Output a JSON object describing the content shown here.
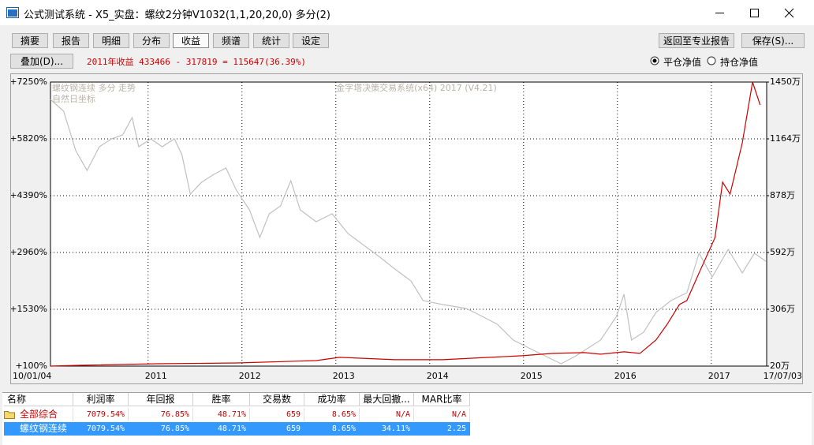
{
  "window": {
    "title": "公式测试系统 - X5_实盘：螺纹2分钟V1032(1,1,20,20,0) 多分(2)"
  },
  "toolbar": {
    "tabs": [
      "摘要",
      "报告",
      "明细",
      "分布",
      "收益",
      "频谱",
      "统计",
      "设定"
    ],
    "overlay_button": "叠加(D)...",
    "profit_text": "2011年收益 433466 - 317819 = 115647(36.39%)",
    "right_buttons": [
      "返回至专业报告",
      "保存(S)..."
    ],
    "radio": [
      "平仓净值",
      "持仓净值"
    ]
  },
  "chart_data": {
    "type": "line",
    "annotations": [
      "螺纹钢连续 多分 走势",
      "自然日坐标",
      "金字塔决策交易系统(x64) 2017 (V4.21)"
    ],
    "xlim": [
      2009.96,
      2017.59
    ],
    "xticks": [
      {
        "value": 2009.96,
        "label": "10/01/04"
      },
      2011,
      2012,
      2013,
      2014,
      2015,
      2016,
      2017,
      {
        "value": 2017.59,
        "label": "17/07/03"
      }
    ],
    "ylim": [
      100,
      7250
    ],
    "yticks": [
      {
        "value": 100,
        "label": "+100%"
      },
      {
        "value": 1530,
        "label": "+1530%"
      },
      {
        "value": 2960,
        "label": "+2960%"
      },
      {
        "value": 4390,
        "label": "+4390%"
      },
      {
        "value": 5820,
        "label": "+5820%"
      },
      {
        "value": 7250,
        "label": "+7250%"
      }
    ],
    "y2lim": [
      20,
      1450
    ],
    "y2ticks": [
      {
        "value": 20,
        "label": "20万"
      },
      {
        "value": 306,
        "label": "306万"
      },
      {
        "value": 592,
        "label": "592万"
      },
      {
        "value": 878,
        "label": "878万"
      },
      {
        "value": 1164,
        "label": "1164万"
      },
      {
        "value": 1450,
        "label": "1450万"
      }
    ],
    "grid": true,
    "series": [
      {
        "color": "#c0c0c0",
        "x": [
          2009.96,
          2010.1,
          2010.23,
          2010.35,
          2010.48,
          2010.61,
          2010.73,
          2010.83,
          2010.9,
          2011.03,
          2011.15,
          2011.28,
          2011.36,
          2011.45,
          2011.57,
          2011.7,
          2011.83,
          2011.94,
          2012.08,
          2012.19,
          2012.29,
          2012.41,
          2012.52,
          2012.62,
          2012.79,
          2012.96,
          2013.13,
          2013.3,
          2013.47,
          2013.63,
          2013.8,
          2013.93,
          2014.14,
          2014.39,
          2014.56,
          2014.72,
          2014.89,
          2015.14,
          2015.4,
          2015.56,
          2015.82,
          2015.99,
          2016.07,
          2016.15,
          2016.28,
          2016.41,
          2016.57,
          2016.74,
          2016.87,
          2017.01,
          2017.18,
          2017.33,
          2017.46,
          2017.58
        ],
        "values": [
          6813,
          6515,
          5522,
          5026,
          5621,
          5820,
          5919,
          6356,
          5621,
          5820,
          5621,
          5820,
          5423,
          4430,
          4728,
          4926,
          5085,
          4529,
          4033,
          3337,
          3933,
          4132,
          4767,
          4033,
          3735,
          3933,
          3437,
          3139,
          2841,
          2543,
          2245,
          1748,
          1649,
          1550,
          1351,
          1153,
          755,
          458,
          160,
          358,
          755,
          1351,
          1907,
          755,
          954,
          1451,
          1748,
          1947,
          2940,
          2344,
          3039,
          2443,
          2940,
          2741
        ]
      },
      {
        "color": "#cc0000",
        "axis": "y2",
        "x": [
          2009.96,
          2010.27,
          2011.11,
          2011.95,
          2012.79,
          2013.04,
          2013.63,
          2014.14,
          2014.47,
          2014.98,
          2015.31,
          2015.65,
          2015.82,
          2016.07,
          2016.24,
          2016.41,
          2016.53,
          2016.66,
          2016.74,
          2016.87,
          2017.04,
          2017.12,
          2017.2,
          2017.33,
          2017.44,
          2017.52
        ],
        "values": [
          20,
          24,
          32,
          36,
          48,
          64,
          52,
          52,
          60,
          72,
          84,
          88,
          80,
          92,
          84,
          151,
          231,
          330,
          350,
          489,
          667,
          946,
          886,
          1144,
          1450,
          1335
        ]
      }
    ]
  },
  "table": {
    "headers": [
      "名称",
      "利润率",
      "年回报",
      "胜率",
      "交易数",
      "成功率",
      "最大回撤...",
      "MAR比率"
    ],
    "rows": [
      [
        "全部综合",
        "7079.54%",
        "76.85%",
        "48.71%",
        "659",
        "8.65%",
        "N/A",
        "N/A"
      ],
      [
        "螺纹钢连续",
        "7079.54%",
        "76.85%",
        "48.71%",
        "659",
        "8.65%",
        "34.11%",
        "2.25"
      ]
    ]
  }
}
